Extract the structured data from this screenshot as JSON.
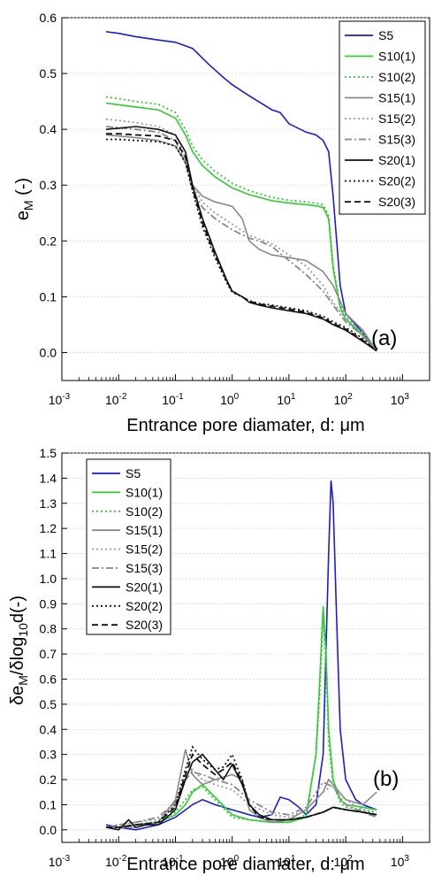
{
  "figure": {
    "panels": [
      "a",
      "b"
    ]
  },
  "chart_data": [
    {
      "panel": "(a)",
      "type": "line",
      "xlabel": "Entrance pore diamater, d: μm",
      "ylabel": "e_M (-)",
      "ylabel_parts": {
        "main": "e",
        "sub": "M",
        "tail": " (-)"
      },
      "xscale": "log",
      "xlim": [
        0.001,
        3000
      ],
      "ylim": [
        -0.05,
        0.6
      ],
      "yticks": [
        0.0,
        0.1,
        0.2,
        0.3,
        0.4,
        0.5,
        0.6
      ],
      "ytick_labels": [
        "0.0",
        "0.1",
        "0.2",
        "0.3",
        "0.4",
        "0.5",
        "0.6"
      ],
      "xticks": [
        -3,
        -2,
        -1,
        0,
        1,
        2,
        3
      ],
      "grid": "horizontal-dotted",
      "legend_position": "top-right",
      "series": [
        {
          "name": "S5",
          "color": "#1a1adc",
          "dash": "solid",
          "x": [
            0.006,
            0.01,
            0.02,
            0.05,
            0.1,
            0.2,
            0.4,
            0.7,
            1,
            2,
            5,
            7,
            10,
            20,
            30,
            40,
            50,
            60,
            80,
            100,
            150,
            200,
            350
          ],
          "y": [
            0.575,
            0.572,
            0.566,
            0.56,
            0.556,
            0.545,
            0.515,
            0.493,
            0.48,
            0.46,
            0.435,
            0.43,
            0.41,
            0.395,
            0.39,
            0.38,
            0.36,
            0.28,
            0.12,
            0.07,
            0.05,
            0.035,
            0.003
          ]
        },
        {
          "name": "S10(1)",
          "color": "#2ecc2e",
          "dash": "solid",
          "x": [
            0.006,
            0.01,
            0.02,
            0.05,
            0.1,
            0.15,
            0.2,
            0.3,
            0.5,
            1,
            2,
            5,
            10,
            20,
            30,
            40,
            50,
            60,
            80,
            100,
            200,
            350
          ],
          "y": [
            0.447,
            0.444,
            0.44,
            0.435,
            0.42,
            0.39,
            0.36,
            0.335,
            0.315,
            0.295,
            0.283,
            0.272,
            0.268,
            0.265,
            0.263,
            0.26,
            0.24,
            0.15,
            0.08,
            0.06,
            0.03,
            0.003
          ]
        },
        {
          "name": "S10(2)",
          "color": "#2ecc2e",
          "dash": "dot",
          "x": [
            0.006,
            0.01,
            0.02,
            0.05,
            0.1,
            0.15,
            0.2,
            0.3,
            0.5,
            1,
            2,
            5,
            10,
            20,
            30,
            40,
            50,
            60,
            80,
            100,
            200,
            350
          ],
          "y": [
            0.458,
            0.455,
            0.45,
            0.445,
            0.43,
            0.4,
            0.37,
            0.345,
            0.325,
            0.303,
            0.29,
            0.278,
            0.273,
            0.27,
            0.268,
            0.265,
            0.245,
            0.155,
            0.085,
            0.065,
            0.032,
            0.003
          ]
        },
        {
          "name": "S15(1)",
          "color": "#888888",
          "dash": "solid",
          "x": [
            0.006,
            0.01,
            0.02,
            0.05,
            0.1,
            0.15,
            0.2,
            0.3,
            0.5,
            1,
            1.5,
            2,
            3,
            5,
            10,
            20,
            40,
            60,
            100,
            200,
            350
          ],
          "y": [
            0.39,
            0.388,
            0.385,
            0.38,
            0.37,
            0.34,
            0.3,
            0.28,
            0.27,
            0.262,
            0.24,
            0.2,
            0.185,
            0.175,
            0.17,
            0.165,
            0.145,
            0.12,
            0.07,
            0.04,
            0.003
          ]
        },
        {
          "name": "S15(2)",
          "color": "#999999",
          "dash": "dot",
          "x": [
            0.006,
            0.01,
            0.02,
            0.05,
            0.1,
            0.15,
            0.2,
            0.3,
            0.5,
            1,
            2,
            5,
            10,
            20,
            40,
            60,
            100,
            200,
            350
          ],
          "y": [
            0.418,
            0.416,
            0.412,
            0.405,
            0.39,
            0.35,
            0.3,
            0.27,
            0.25,
            0.23,
            0.21,
            0.195,
            0.175,
            0.155,
            0.12,
            0.09,
            0.06,
            0.035,
            0.003
          ]
        },
        {
          "name": "S15(3)",
          "color": "#888888",
          "dash": "dashdot",
          "x": [
            0.006,
            0.01,
            0.02,
            0.05,
            0.1,
            0.15,
            0.2,
            0.3,
            0.5,
            1,
            2,
            3,
            5,
            10,
            20,
            40,
            60,
            100,
            200,
            350
          ],
          "y": [
            0.405,
            0.403,
            0.4,
            0.395,
            0.38,
            0.34,
            0.29,
            0.26,
            0.24,
            0.22,
            0.205,
            0.2,
            0.19,
            0.165,
            0.14,
            0.11,
            0.085,
            0.055,
            0.03,
            0.003
          ]
        },
        {
          "name": "S20(1)",
          "color": "#111111",
          "dash": "solid",
          "x": [
            0.006,
            0.01,
            0.02,
            0.05,
            0.1,
            0.15,
            0.2,
            0.3,
            0.5,
            0.8,
            1,
            1.5,
            2,
            3,
            5,
            10,
            20,
            40,
            60,
            100,
            200,
            350
          ],
          "y": [
            0.4,
            0.402,
            0.405,
            0.4,
            0.39,
            0.36,
            0.3,
            0.24,
            0.18,
            0.13,
            0.11,
            0.1,
            0.09,
            0.085,
            0.08,
            0.075,
            0.07,
            0.06,
            0.05,
            0.04,
            0.02,
            0.003
          ]
        },
        {
          "name": "S20(2)",
          "color": "#111111",
          "dash": "dot",
          "x": [
            0.006,
            0.01,
            0.02,
            0.05,
            0.1,
            0.15,
            0.2,
            0.3,
            0.5,
            0.8,
            1,
            1.5,
            2,
            3,
            5,
            10,
            20,
            40,
            60,
            100,
            200,
            350
          ],
          "y": [
            0.382,
            0.382,
            0.38,
            0.378,
            0.37,
            0.34,
            0.29,
            0.225,
            0.17,
            0.125,
            0.108,
            0.1,
            0.093,
            0.088,
            0.085,
            0.08,
            0.075,
            0.065,
            0.055,
            0.045,
            0.025,
            0.003
          ]
        },
        {
          "name": "S20(3)",
          "color": "#111111",
          "dash": "dash",
          "x": [
            0.006,
            0.01,
            0.02,
            0.05,
            0.1,
            0.15,
            0.2,
            0.3,
            0.5,
            0.8,
            1,
            1.5,
            2,
            3,
            5,
            10,
            20,
            40,
            60,
            100,
            200,
            350
          ],
          "y": [
            0.392,
            0.392,
            0.39,
            0.388,
            0.38,
            0.35,
            0.295,
            0.232,
            0.175,
            0.128,
            0.11,
            0.1,
            0.092,
            0.087,
            0.083,
            0.078,
            0.072,
            0.062,
            0.052,
            0.042,
            0.022,
            0.003
          ]
        }
      ]
    },
    {
      "panel": "(b)",
      "type": "line",
      "xlabel": "Entrance pore diamater, d: μm",
      "ylabel": "δe_M/δlog_10 d(-)",
      "ylabel_parts": {
        "p1": "δe",
        "sub1": "M",
        "p2": "/δlog",
        "sub2": "10",
        "p3": "d(-)"
      },
      "xscale": "log",
      "xlim": [
        0.001,
        3000
      ],
      "ylim": [
        -0.05,
        1.5
      ],
      "yticks": [
        0.0,
        0.1,
        0.2,
        0.3,
        0.4,
        0.5,
        0.6,
        0.7,
        0.8,
        0.9,
        1.0,
        1.1,
        1.2,
        1.3,
        1.4,
        1.5
      ],
      "ytick_labels": [
        "0.0",
        "0.1",
        "0.2",
        "0.3",
        "0.4",
        "0.5",
        "0.6",
        "0.7",
        "0.8",
        "0.9",
        "1.0",
        "1.1",
        "1.2",
        "1.3",
        "1.4",
        "1.5"
      ],
      "xticks": [
        -3,
        -2,
        -1,
        0,
        1,
        2,
        3
      ],
      "grid": "horizontal-dotted",
      "legend_position": "top-left",
      "series": [
        {
          "name": "S5",
          "color": "#1a1adc",
          "dash": "solid",
          "x": [
            0.006,
            0.01,
            0.02,
            0.05,
            0.1,
            0.2,
            0.3,
            0.5,
            1,
            2,
            3,
            5,
            7,
            10,
            15,
            20,
            30,
            40,
            50,
            55,
            60,
            70,
            80,
            100,
            150,
            200,
            350
          ],
          "y": [
            0.02,
            0.01,
            0.0,
            0.02,
            0.05,
            0.1,
            0.12,
            0.1,
            0.08,
            0.06,
            0.05,
            0.06,
            0.13,
            0.12,
            0.09,
            0.06,
            0.1,
            0.3,
            1.1,
            1.39,
            1.3,
            0.8,
            0.4,
            0.2,
            0.12,
            0.1,
            0.08
          ]
        },
        {
          "name": "S10(1)",
          "color": "#2ecc2e",
          "dash": "solid",
          "x": [
            0.006,
            0.01,
            0.02,
            0.05,
            0.1,
            0.15,
            0.2,
            0.3,
            0.5,
            1,
            2,
            5,
            10,
            20,
            30,
            35,
            40,
            45,
            50,
            60,
            80,
            100,
            200,
            350
          ],
          "y": [
            0.01,
            0.01,
            0.02,
            0.03,
            0.06,
            0.1,
            0.15,
            0.18,
            0.13,
            0.06,
            0.04,
            0.03,
            0.03,
            0.05,
            0.3,
            0.6,
            0.89,
            0.7,
            0.4,
            0.2,
            0.12,
            0.1,
            0.09,
            0.08
          ]
        },
        {
          "name": "S10(2)",
          "color": "#2ecc2e",
          "dash": "dot",
          "x": [
            0.006,
            0.01,
            0.02,
            0.05,
            0.1,
            0.15,
            0.2,
            0.3,
            0.5,
            1,
            2,
            5,
            10,
            20,
            30,
            35,
            40,
            45,
            50,
            60,
            80,
            100,
            200,
            350
          ],
          "y": [
            0.01,
            0.01,
            0.02,
            0.03,
            0.07,
            0.12,
            0.16,
            0.17,
            0.12,
            0.05,
            0.04,
            0.03,
            0.03,
            0.06,
            0.3,
            0.55,
            0.85,
            0.65,
            0.35,
            0.18,
            0.11,
            0.09,
            0.08,
            0.07
          ]
        },
        {
          "name": "S15(1)",
          "color": "#888888",
          "dash": "solid",
          "x": [
            0.006,
            0.01,
            0.02,
            0.05,
            0.1,
            0.15,
            0.2,
            0.3,
            0.5,
            1,
            1.5,
            2,
            3,
            5,
            10,
            20,
            40,
            50,
            60,
            100,
            200,
            350
          ],
          "y": [
            0.01,
            0.01,
            0.01,
            0.03,
            0.12,
            0.32,
            0.22,
            0.18,
            0.2,
            0.22,
            0.2,
            0.08,
            0.05,
            0.03,
            0.04,
            0.08,
            0.15,
            0.2,
            0.18,
            0.12,
            0.1,
            0.15
          ]
        },
        {
          "name": "S15(2)",
          "color": "#999999",
          "dash": "dot",
          "x": [
            0.006,
            0.01,
            0.02,
            0.05,
            0.1,
            0.15,
            0.2,
            0.3,
            0.5,
            1,
            2,
            5,
            10,
            20,
            40,
            60,
            100,
            200,
            350
          ],
          "y": [
            0.01,
            0.02,
            0.03,
            0.04,
            0.1,
            0.22,
            0.24,
            0.2,
            0.18,
            0.16,
            0.1,
            0.06,
            0.05,
            0.08,
            0.15,
            0.18,
            0.12,
            0.08,
            0.06
          ]
        },
        {
          "name": "S15(3)",
          "color": "#888888",
          "dash": "dashdot",
          "x": [
            0.006,
            0.01,
            0.02,
            0.05,
            0.1,
            0.15,
            0.2,
            0.3,
            0.5,
            1,
            2,
            5,
            10,
            20,
            40,
            60,
            100,
            200,
            350
          ],
          "y": [
            0.01,
            0.02,
            0.03,
            0.05,
            0.11,
            0.2,
            0.23,
            0.22,
            0.2,
            0.18,
            0.12,
            0.07,
            0.06,
            0.09,
            0.19,
            0.17,
            0.1,
            0.07,
            0.05
          ]
        },
        {
          "name": "S20(1)",
          "color": "#111111",
          "dash": "solid",
          "x": [
            0.006,
            0.01,
            0.015,
            0.02,
            0.03,
            0.05,
            0.1,
            0.15,
            0.2,
            0.3,
            0.5,
            0.7,
            1,
            1.5,
            2,
            3,
            5,
            10,
            20,
            40,
            60,
            100,
            200,
            350
          ],
          "y": [
            0.01,
            0.0,
            0.04,
            0.01,
            0.02,
            0.02,
            0.08,
            0.2,
            0.27,
            0.3,
            0.24,
            0.2,
            0.26,
            0.18,
            0.1,
            0.06,
            0.04,
            0.04,
            0.05,
            0.07,
            0.09,
            0.08,
            0.07,
            0.06
          ]
        },
        {
          "name": "S20(2)",
          "color": "#111111",
          "dash": "dot",
          "x": [
            0.006,
            0.01,
            0.02,
            0.05,
            0.1,
            0.15,
            0.2,
            0.3,
            0.5,
            0.7,
            1,
            1.5,
            2,
            3,
            5,
            10,
            20,
            40,
            60,
            100,
            200,
            350
          ],
          "y": [
            0.01,
            0.01,
            0.02,
            0.03,
            0.1,
            0.24,
            0.33,
            0.28,
            0.24,
            0.25,
            0.3,
            0.2,
            0.1,
            0.05,
            0.04,
            0.04,
            0.05,
            0.07,
            0.09,
            0.08,
            0.07,
            0.06
          ]
        },
        {
          "name": "S20(3)",
          "color": "#111111",
          "dash": "dash",
          "x": [
            0.006,
            0.01,
            0.02,
            0.05,
            0.1,
            0.15,
            0.2,
            0.3,
            0.5,
            0.7,
            1,
            1.5,
            2,
            3,
            5,
            10,
            20,
            40,
            60,
            100,
            200,
            350
          ],
          "y": [
            0.01,
            0.01,
            0.02,
            0.03,
            0.09,
            0.22,
            0.3,
            0.26,
            0.22,
            0.24,
            0.27,
            0.19,
            0.1,
            0.05,
            0.04,
            0.04,
            0.05,
            0.07,
            0.09,
            0.08,
            0.07,
            0.06
          ]
        }
      ]
    }
  ]
}
